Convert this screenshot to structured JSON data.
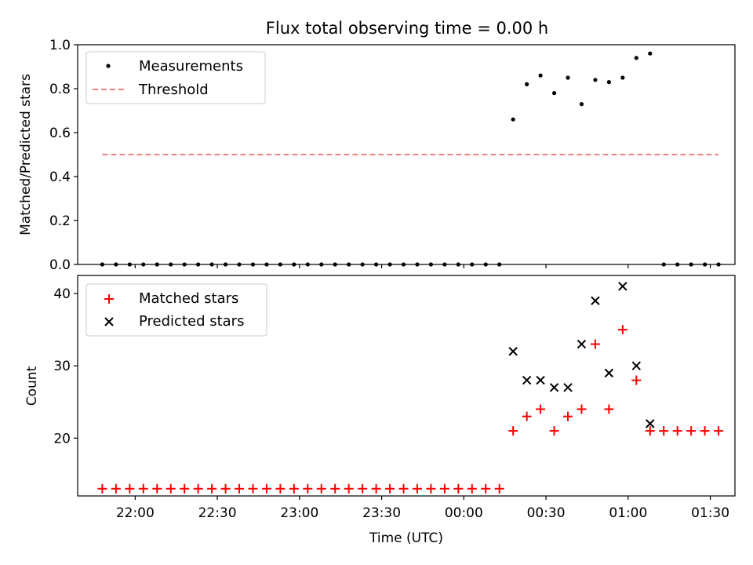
{
  "chart_data": [
    {
      "type": "scatter",
      "title": "Flux total observing time = 0.00 h",
      "xlabel": "",
      "ylabel": "Matched/Predicted stars",
      "ylim": [
        0.0,
        1.0
      ],
      "y_ticks": [
        "0.0",
        "0.2",
        "0.4",
        "0.6",
        "0.8",
        "1.0"
      ],
      "x_ticks": [
        "22:00",
        "22:30",
        "23:00",
        "23:30",
        "00:00",
        "00:30",
        "01:00",
        "01:30"
      ],
      "x_tick_labels_visible": false,
      "xlim": [
        "21:39",
        "01:39"
      ],
      "grid": false,
      "legend_position": "upper-left",
      "series": [
        {
          "name": "Measurements",
          "marker": "dot",
          "color": "#000000",
          "x": [
            "21:48",
            "21:53",
            "21:58",
            "22:03",
            "22:08",
            "22:13",
            "22:18",
            "22:23",
            "22:28",
            "22:33",
            "22:38",
            "22:43",
            "22:48",
            "22:53",
            "22:58",
            "23:03",
            "23:08",
            "23:13",
            "23:18",
            "23:23",
            "23:28",
            "23:33",
            "23:38",
            "23:43",
            "23:48",
            "23:53",
            "23:58",
            "00:03",
            "00:08",
            "00:13",
            "00:18",
            "00:23",
            "00:28",
            "00:33",
            "00:38",
            "00:43",
            "00:48",
            "00:53",
            "00:58",
            "01:03",
            "01:08",
            "01:13",
            "01:18",
            "01:23",
            "01:28",
            "01:33"
          ],
          "y": [
            0,
            0,
            0,
            0,
            0,
            0,
            0,
            0,
            0,
            0,
            0,
            0,
            0,
            0,
            0,
            0,
            0,
            0,
            0,
            0,
            0,
            0,
            0,
            0,
            0,
            0,
            0,
            0,
            0,
            0,
            0.66,
            0.82,
            0.86,
            0.78,
            0.85,
            0.73,
            0.84,
            0.83,
            0.85,
            0.94,
            0.96,
            0,
            0,
            0,
            0,
            0
          ]
        },
        {
          "name": "Threshold",
          "marker": "dashed-line",
          "color": "#f08080",
          "x": [
            "21:48",
            "01:33"
          ],
          "y": [
            0.5,
            0.5
          ]
        }
      ]
    },
    {
      "type": "scatter",
      "title": "",
      "xlabel": "Time (UTC)",
      "ylabel": "Count",
      "ylim": [
        12,
        42.5
      ],
      "y_ticks": [
        "20",
        "30",
        "40"
      ],
      "x_ticks": [
        "22:00",
        "22:30",
        "23:00",
        "23:30",
        "00:00",
        "00:30",
        "01:00",
        "01:30"
      ],
      "xlim": [
        "21:39",
        "01:39"
      ],
      "grid": false,
      "legend_position": "upper-left",
      "series": [
        {
          "name": "Matched stars",
          "marker": "plus",
          "color": "#ff0000",
          "x": [
            "21:48",
            "21:53",
            "21:58",
            "22:03",
            "22:08",
            "22:13",
            "22:18",
            "22:23",
            "22:28",
            "22:33",
            "22:38",
            "22:43",
            "22:48",
            "22:53",
            "22:58",
            "23:03",
            "23:08",
            "23:13",
            "23:18",
            "23:23",
            "23:28",
            "23:33",
            "23:38",
            "23:43",
            "23:48",
            "23:53",
            "23:58",
            "00:03",
            "00:08",
            "00:13",
            "00:18",
            "00:23",
            "00:28",
            "00:33",
            "00:38",
            "00:43",
            "00:48",
            "00:53",
            "00:58",
            "01:03",
            "01:08",
            "01:13",
            "01:18",
            "01:23",
            "01:28",
            "01:33"
          ],
          "y": [
            13,
            13,
            13,
            13,
            13,
            13,
            13,
            13,
            13,
            13,
            13,
            13,
            13,
            13,
            13,
            13,
            13,
            13,
            13,
            13,
            13,
            13,
            13,
            13,
            13,
            13,
            13,
            13,
            13,
            13,
            21,
            23,
            24,
            21,
            23,
            24,
            33,
            24,
            35,
            28,
            21,
            21,
            21,
            21,
            21,
            21
          ]
        },
        {
          "name": "Predicted stars",
          "marker": "x",
          "color": "#000000",
          "x": [
            "00:18",
            "00:23",
            "00:28",
            "00:33",
            "00:38",
            "00:43",
            "00:48",
            "00:53",
            "00:58",
            "01:03",
            "01:08"
          ],
          "y": [
            32,
            28,
            28,
            27,
            27,
            33,
            39,
            29,
            41,
            30,
            22
          ]
        }
      ]
    }
  ]
}
